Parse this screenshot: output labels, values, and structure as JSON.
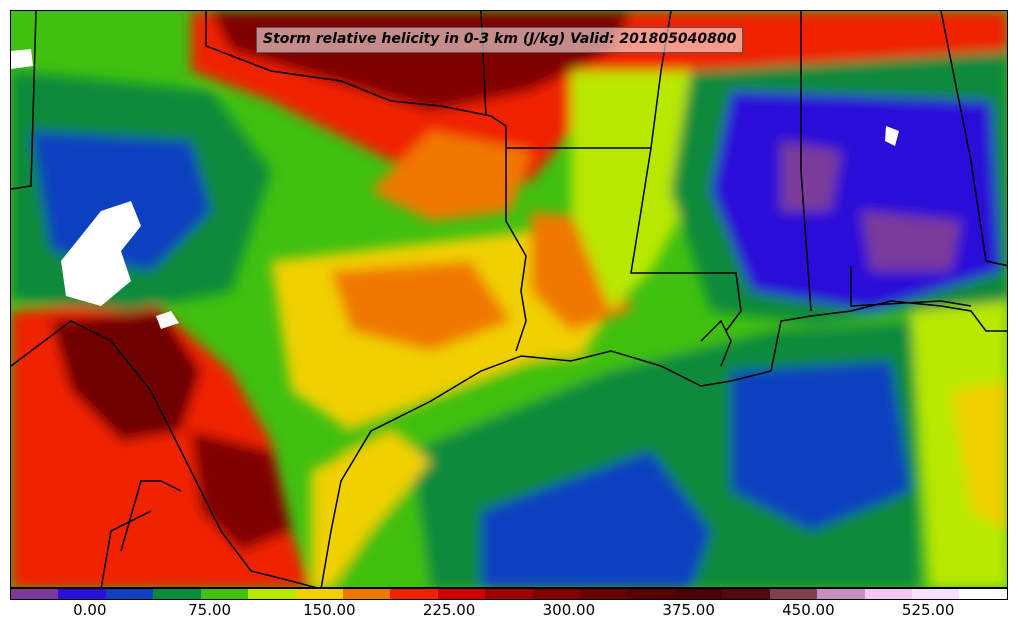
{
  "title": "Storm relative helicity in 0-3 km (J/kg) Valid: 201805040800",
  "colorbar": {
    "colors": [
      "#7a3a9a",
      "#2a10d8",
      "#1040c0",
      "#0a8a3a",
      "#40c010",
      "#b8e800",
      "#f0d000",
      "#f07800",
      "#f02000",
      "#d00000",
      "#a00000",
      "#800000",
      "#6a0000",
      "#580000",
      "#4a0000",
      "#500a0a",
      "#804050",
      "#c890c0",
      "#f0c8f0",
      "#f8e0f8",
      "#ffffff"
    ],
    "ticks": [
      {
        "label": "0.00",
        "frac": 0.08
      },
      {
        "label": "75.00",
        "frac": 0.2
      },
      {
        "label": "150.00",
        "frac": 0.32
      },
      {
        "label": "225.00",
        "frac": 0.44
      },
      {
        "label": "300.00",
        "frac": 0.56
      },
      {
        "label": "375.00",
        "frac": 0.68
      },
      {
        "label": "450.00",
        "frac": 0.8
      },
      {
        "label": "525.00",
        "frac": 0.92
      }
    ]
  },
  "field_colors": {
    "purple": "#7a3a9a",
    "blue_violet": "#2a10d8",
    "blue": "#1040c0",
    "green": "#0a8a3a",
    "lime": "#40c010",
    "yellow_green": "#b8e800",
    "yellow": "#f0d000",
    "orange": "#f07800",
    "red": "#f02000",
    "dark_red": "#b00000",
    "maroon": "#600000",
    "white": "#ffffff"
  }
}
